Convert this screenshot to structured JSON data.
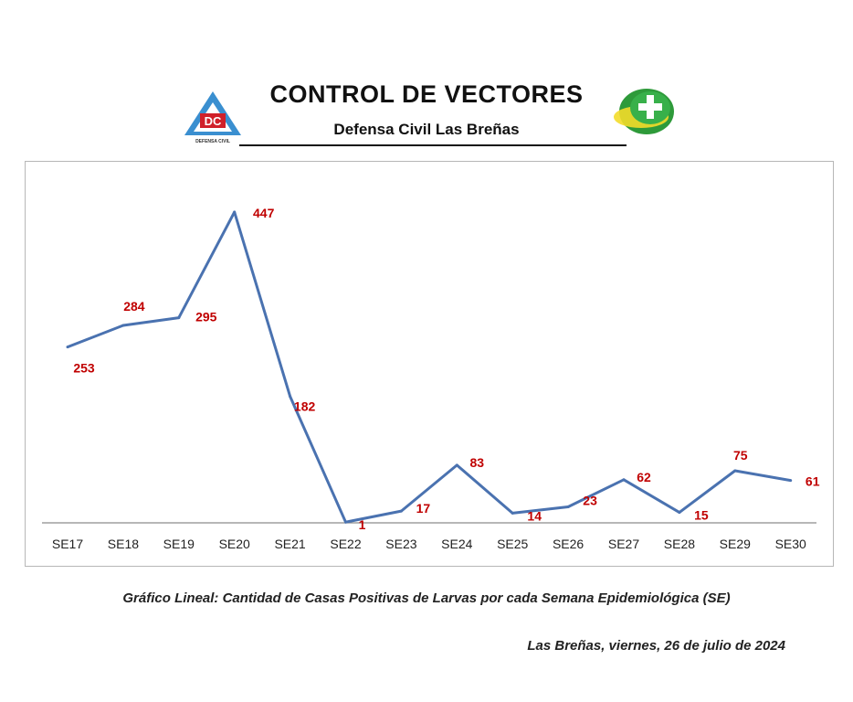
{
  "header": {
    "title": "CONTROL DE VECTORES",
    "subtitle": "Defensa Civil Las Breñas",
    "logo_left_text": "DC",
    "logo_left_caption": "DEFENSA CIVIL"
  },
  "colors": {
    "line": "#4a72b0",
    "data_label": "#c00000",
    "axis": "#8c8c8c",
    "logo_blue": "#3a8fd0",
    "logo_red": "#d0202a",
    "logo_green": "#2e9a3a",
    "logo_yellow": "#f3dc2a"
  },
  "chart_data": {
    "type": "line",
    "categories": [
      "SE17",
      "SE18",
      "SE19",
      "SE20",
      "SE21",
      "SE22",
      "SE23",
      "SE24",
      "SE25",
      "SE26",
      "SE27",
      "SE28",
      "SE29",
      "SE30"
    ],
    "values": [
      253,
      284,
      295,
      447,
      182,
      1,
      17,
      83,
      14,
      23,
      62,
      15,
      75,
      61
    ],
    "ylim": [
      0,
      480
    ],
    "grid": false,
    "legend": "none",
    "data_labels": true
  },
  "caption": "Gráfico Lineal: Cantidad de Casas Positivas de Larvas por cada Semana Epidemiológica (SE)",
  "date_line": "Las Breñas,  viernes, 26 de julio de 2024"
}
